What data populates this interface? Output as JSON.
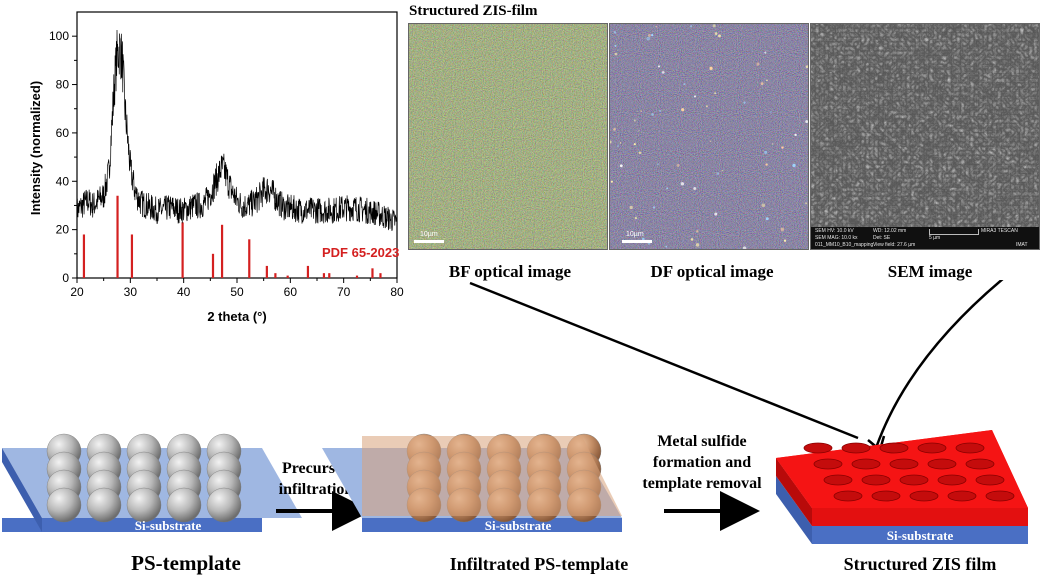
{
  "xrd": {
    "ylabel": "Intensity (normalized)",
    "xlabel": "2 theta (°)",
    "x_ticks": [
      "20",
      "30",
      "40",
      "50",
      "60",
      "70",
      "80"
    ],
    "y_ticks": [
      "0",
      "20",
      "40",
      "60",
      "80",
      "100"
    ],
    "reference_label": "PDF 65-2023",
    "reference_color": "#d42020"
  },
  "images": {
    "title": "Structured ZIS-film",
    "bf": {
      "caption": "BF optical image",
      "scale": "10µm"
    },
    "df": {
      "caption": "DF optical image",
      "scale": "10µm"
    },
    "sem": {
      "caption": "SEM image",
      "hv": "SEM HV: 10.0 kV",
      "wd": "WD: 12.02 mm",
      "mag": "SEM MAG: 10.0 kx",
      "det": "Det: SE",
      "scale": "5 µm",
      "brand": "MIRA3 TESCAN",
      "file": "011_MM10_B10_mapping",
      "view": "View field: 27.6 µm",
      "lab": "IMAT"
    }
  },
  "process": {
    "step1_substrate": "Si-substrate",
    "step1_label": "PS-template",
    "arrow1_line1": "Precursor",
    "arrow1_line2": "infiltration",
    "step2_substrate": "Si-substrate",
    "step2_label": "Infiltrated PS-template",
    "arrow2_line1": "Metal sulfide",
    "arrow2_line2": "formation and",
    "arrow2_line3": "template removal",
    "step3_substrate": "Si-substrate",
    "step3_label": "Structured ZIS film"
  },
  "chart_data": {
    "type": "line",
    "xlabel": "2 theta (°)",
    "ylabel": "Intensity (normalized)",
    "xlim": [
      20,
      80
    ],
    "ylim": [
      0,
      110
    ],
    "grid": false,
    "series": [
      {
        "x": [
          20,
          21,
          22,
          23,
          24,
          25,
          26,
          27,
          27.5,
          28,
          28.5,
          29,
          30,
          31,
          32,
          33,
          34,
          35,
          36,
          37,
          38,
          39,
          40,
          41,
          42,
          43,
          44,
          45,
          46,
          47,
          47.5,
          48,
          49,
          50,
          51,
          52,
          53,
          54,
          55,
          56,
          57,
          58,
          59,
          60,
          62,
          64,
          66,
          68,
          70,
          72,
          74,
          76,
          78,
          80
        ],
        "y": [
          28,
          30,
          32,
          30,
          32,
          34,
          44,
          80,
          92,
          95,
          90,
          70,
          45,
          35,
          31,
          30,
          29,
          28,
          28,
          29,
          29,
          28,
          28,
          29,
          30,
          30,
          31,
          35,
          40,
          45,
          45,
          42,
          36,
          32,
          30,
          30,
          31,
          33,
          36,
          37,
          34,
          31,
          29,
          29,
          28,
          28,
          28,
          28,
          29,
          29,
          28,
          27,
          25,
          23
        ]
      },
      {
        "name": "PDF 65-2023",
        "type": "stick",
        "x": [
          21.3,
          27.6,
          30.3,
          39.8,
          45.5,
          47.2,
          52.3,
          55.6,
          57.2,
          59.5,
          63.3,
          66.3,
          67.3,
          72.5,
          75.4,
          76.9
        ],
        "y": [
          18,
          34,
          18,
          23,
          10,
          22,
          16,
          5,
          2,
          1,
          5,
          2,
          2,
          1,
          4,
          2
        ]
      }
    ]
  }
}
